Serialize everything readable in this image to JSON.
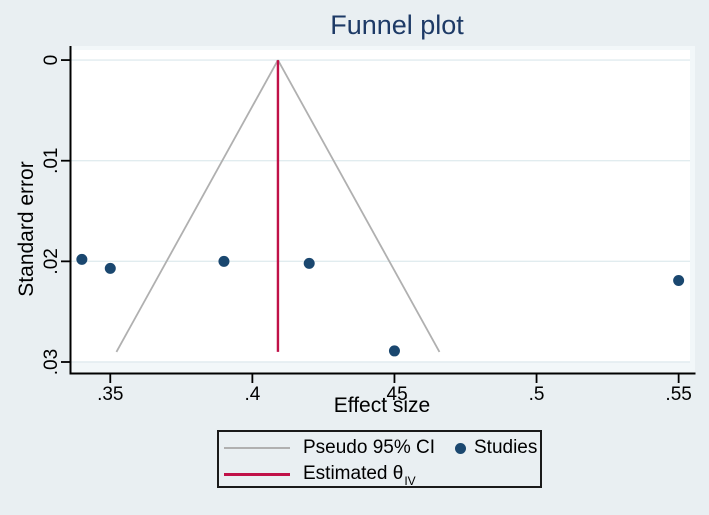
{
  "figure": {
    "title": "Funnel plot",
    "x_axis_label": "Effect size",
    "y_axis_label": "Standard error"
  },
  "colors": {
    "background": "#e9eff2",
    "plot_background": "#ffffff",
    "plot_margin": "#f2f7f9",
    "grid": "#e1ecef",
    "axis": "#000000",
    "title": "#1d3a66",
    "text": "#000000",
    "funnel_ci": "#b0b0b0",
    "theta_line": "#c01148",
    "study_marker": "#1a476f",
    "legend_border": "#1a1a1a"
  },
  "chart_data": {
    "type": "scatter",
    "title": "Funnel plot",
    "xlabel": "Effect size",
    "ylabel": "Standard error",
    "y_axis_inverted": true,
    "grid": "horizontal-only",
    "xlim": [
      0.336,
      0.554
    ],
    "ylim": [
      -0.001,
      0.03
    ],
    "x_ticks": [
      0.35,
      0.4,
      0.45,
      0.5,
      0.55
    ],
    "x_tick_labels": [
      ".35",
      ".4",
      ".45",
      ".5",
      ".55"
    ],
    "y_ticks": [
      0,
      0.01,
      0.02,
      0.03
    ],
    "y_tick_labels": [
      "0",
      ".01",
      ".02",
      ".03"
    ],
    "studies": {
      "name": "Studies",
      "points": [
        {
          "effect": 0.34,
          "se": 0.0198
        },
        {
          "effect": 0.35,
          "se": 0.0207
        },
        {
          "effect": 0.39,
          "se": 0.02
        },
        {
          "effect": 0.42,
          "se": 0.0202
        },
        {
          "effect": 0.45,
          "se": 0.0289
        },
        {
          "effect": 0.55,
          "se": 0.0219
        }
      ]
    },
    "pseudo_ci": {
      "name": "Pseudo 95% CI",
      "apex_effect": 0.409,
      "apex_se": 0,
      "base_se": 0.029,
      "z": 1.96
    },
    "theta_line": {
      "name": "Estimated θIV",
      "effect": 0.409,
      "se_from": 0,
      "se_to": 0.029
    }
  },
  "legend": {
    "items": [
      {
        "label": "Pseudo 95% CI"
      },
      {
        "label": "Studies"
      },
      {
        "label": "Estimated θ",
        "subscript": "IV"
      }
    ]
  }
}
